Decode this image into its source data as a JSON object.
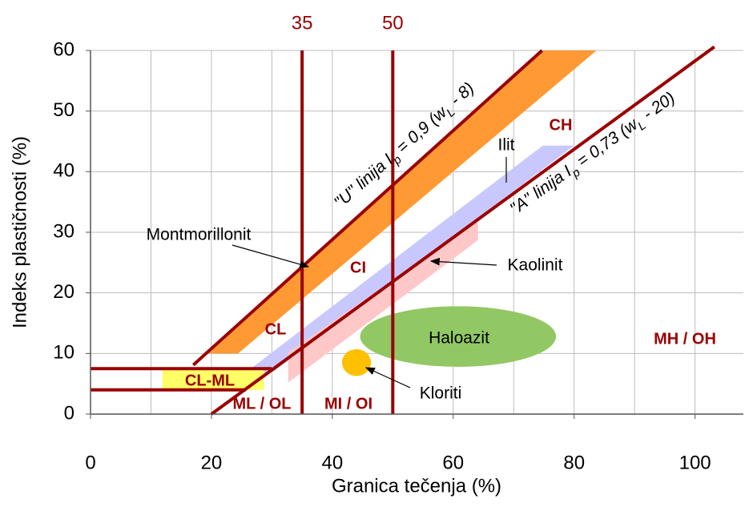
{
  "chart_data": {
    "type": "plasticity",
    "xlabel": "Granica tečenja (%)",
    "ylabel": "Indeks plastičnosti (%)",
    "xlim": [
      0,
      108
    ],
    "ylim": [
      0,
      60
    ],
    "xticks": [
      0,
      20,
      40,
      60,
      80,
      100
    ],
    "yticks": [
      0,
      10,
      20,
      30,
      40,
      50,
      60
    ],
    "xgrid": [
      10,
      20,
      30,
      40,
      50,
      60,
      70,
      80,
      90,
      100
    ],
    "grid": true,
    "vlines": {
      "values": [
        35,
        50
      ],
      "color": "#990000"
    },
    "bands": [
      {
        "x": [
          19.5,
          75,
          83.7,
          24.4
        ],
        "y": [
          10,
          60,
          60,
          10
        ],
        "color": "#ff9933"
      },
      {
        "x": [
          24.8,
          74.8,
          80,
          30.1
        ],
        "y": [
          6.2,
          44.3,
          44.3,
          6.9
        ],
        "color": "#c8c8ff"
      },
      {
        "x": [
          32.7,
          64.1,
          64.1,
          32.7
        ],
        "y": [
          10.2,
          31.8,
          28.7,
          5.2
        ],
        "color": "#ffc8c8"
      },
      {
        "x": [
          11.9,
          28.7,
          28.7,
          11.9
        ],
        "y": [
          7.5,
          7.5,
          4,
          4
        ],
        "color": "#ffff66"
      }
    ],
    "ellipses": [
      {
        "x": 60.8,
        "y": 12.8,
        "rx": 16.2,
        "ry": 5,
        "color": "#92c864"
      },
      {
        "x": 44,
        "y": 8.5,
        "rx": 2.4,
        "ry": 2.2,
        "color": "#ffc000"
      }
    ],
    "lines": [
      {
        "x": [
          17,
          74.7
        ],
        "y": [
          8.1,
          60
        ],
        "color": "#990000"
      },
      {
        "x": [
          20,
          103.2
        ],
        "y": [
          0,
          60.6
        ],
        "color": "#990000"
      },
      {
        "x": [
          0,
          30
        ],
        "y": [
          7.5,
          7.5
        ],
        "color": "#990000"
      },
      {
        "x": [
          0,
          25.7
        ],
        "y": [
          4,
          4
        ],
        "color": "#990000"
      }
    ],
    "line_labels": [
      {
        "parts": [
          {
            "text": "\"U\"  linija I"
          },
          {
            "text": "p",
            "sub": true
          },
          {
            "text": " = 0,9 (w"
          },
          {
            "text": "L",
            "sub": true
          },
          {
            "text": " - 8)"
          }
        ]
      },
      {
        "parts": [
          {
            "text": "\"A\"  linija I"
          },
          {
            "text": "p",
            "sub": true
          },
          {
            "text": " = 0,73 (w"
          },
          {
            "text": "L",
            "sub": true
          },
          {
            "text": " - 20)"
          }
        ]
      }
    ],
    "regions": [
      "CH",
      "CI",
      "CL",
      "CL-ML",
      "ML / OL",
      "MI / OI",
      "MH / OH"
    ],
    "region_color": "#990000",
    "annotations": [
      "Montmorillonit",
      "Kaolinit",
      "Ilit",
      "Kloriti",
      "Haloazit"
    ]
  }
}
